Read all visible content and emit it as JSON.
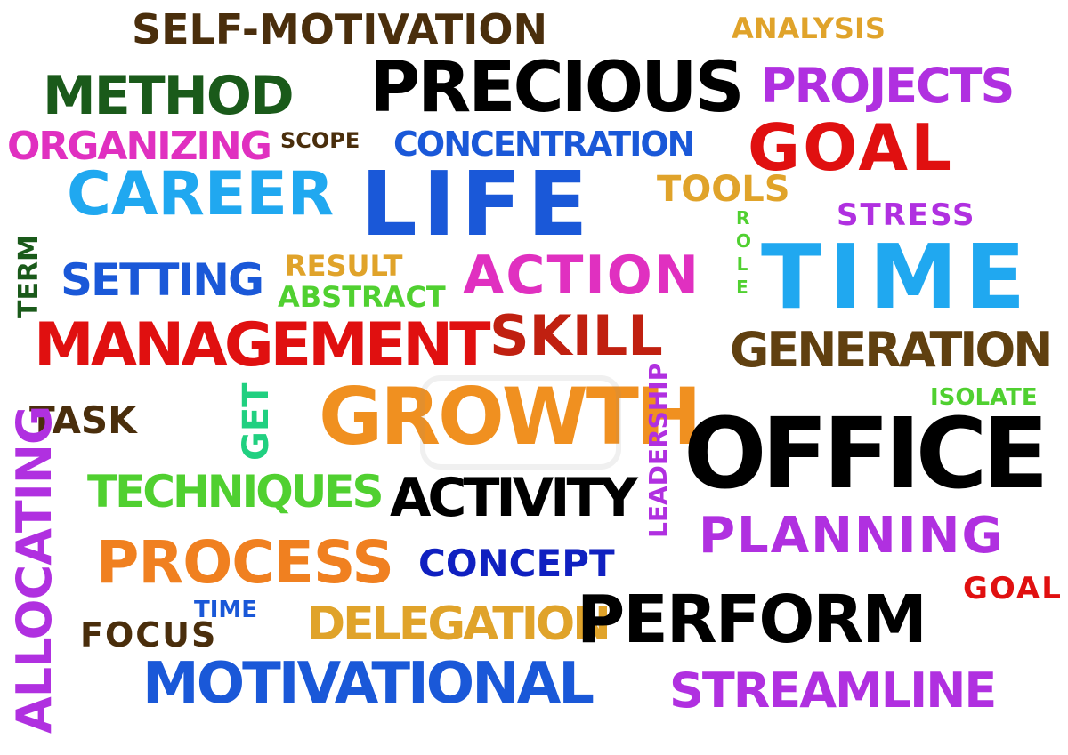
{
  "words": {
    "self_motivation": "SELF-MOTIVATION",
    "analysis": "ANALYSIS",
    "method": "METHOD",
    "precious": "PRECIOUS",
    "projects": "PROJECTS",
    "organizing": "ORGANIZING",
    "scope": "SCOPE",
    "concentration": "CONCENTRATION",
    "goal": "GOAL",
    "career": "CAREER",
    "life": "LIFE",
    "tools": "TOOLS",
    "stress": "STRESS",
    "term": "TERM",
    "role": "ROLE",
    "setting": "SETTING",
    "result": "RESULT",
    "abstract": "ABSTRACT",
    "action": "ACTION",
    "time": "TIME",
    "management": "MANAGEMENT",
    "skill": "SKILL",
    "generation": "GENERATION",
    "isolate": "ISOLATE",
    "task": "TASK",
    "get": "GET",
    "growth": "GROWTH",
    "leadership": "LEADERSHIP",
    "office": "OFFICE",
    "allocating": "ALLOCATING",
    "techniques": "TECHNIQUES",
    "activity": "ACTIVITY",
    "planning": "PLANNING",
    "process": "PROCESS",
    "concept": "CONCEPT",
    "goal_small": "GOAL",
    "time_small": "TIME",
    "focus": "FOCUS",
    "delegation": "DELEGATION",
    "perform": "PERFORM",
    "motivational": "MOTIVATIONAL",
    "streamline": "STREAMLINE"
  },
  "colors": {
    "brown": "#4a2e0c",
    "gold": "#e0a32a",
    "dark_green": "#1a5a1a",
    "black": "#000000",
    "purple": "#b030e0",
    "magenta": "#e030c0",
    "blue": "#1a58d8",
    "red": "#e01010",
    "sky": "#20a8f0",
    "light_green": "#50d030",
    "orange": "#f08020",
    "dark_red": "#c02010",
    "olive": "#604010",
    "navy": "#1020c0"
  }
}
